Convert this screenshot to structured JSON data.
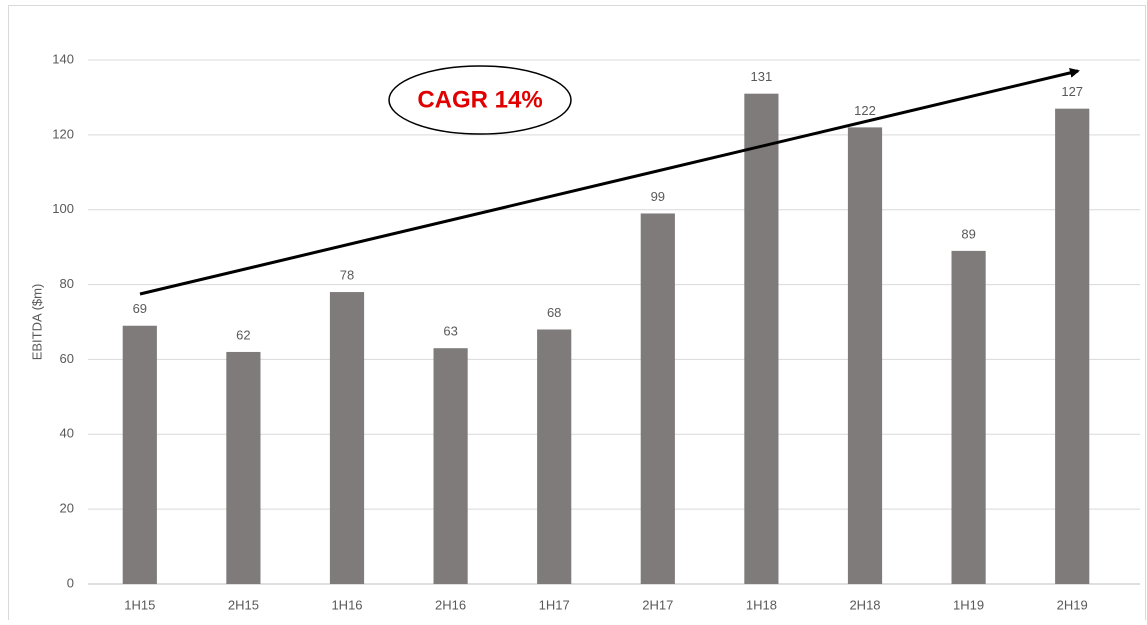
{
  "chart_data": {
    "type": "bar",
    "y_label": "EBITDA ($m)",
    "annotation": "CAGR 14%",
    "categories": [
      "1H15",
      "2H15",
      "1H16",
      "2H16",
      "1H17",
      "2H17",
      "1H18",
      "2H18",
      "1H19",
      "2H19"
    ],
    "values": [
      69,
      62,
      78,
      63,
      68,
      99,
      131,
      122,
      89,
      127
    ],
    "color": "#7f7b7b",
    "ylim": [
      0,
      140
    ],
    "yticks": [
      0,
      20,
      40,
      60,
      80,
      100,
      120,
      140
    ],
    "grid": true
  }
}
